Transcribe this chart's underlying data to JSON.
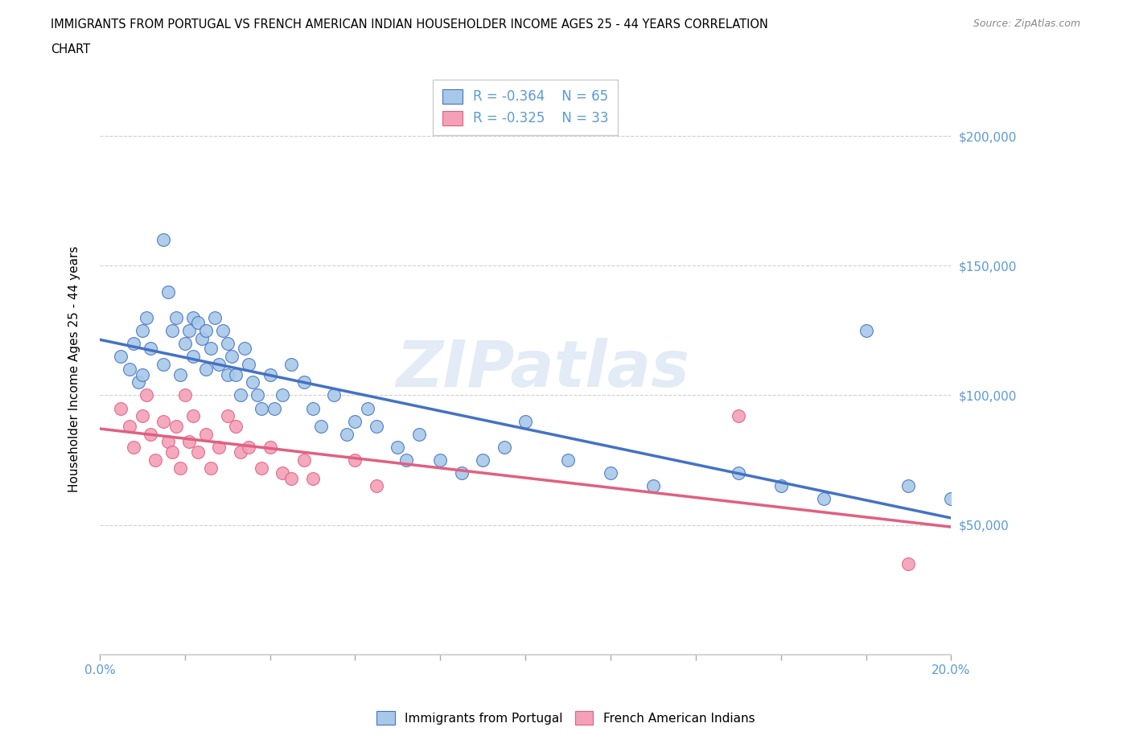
{
  "title_line1": "IMMIGRANTS FROM PORTUGAL VS FRENCH AMERICAN INDIAN HOUSEHOLDER INCOME AGES 25 - 44 YEARS CORRELATION",
  "title_line2": "CHART",
  "source_text": "Source: ZipAtlas.com",
  "ylabel": "Householder Income Ages 25 - 44 years",
  "xlim": [
    0.0,
    0.2
  ],
  "ylim": [
    0,
    220000
  ],
  "yticks": [
    0,
    50000,
    100000,
    150000,
    200000
  ],
  "ytick_labels": [
    "",
    "$50,000",
    "$100,000",
    "$150,000",
    "$200,000"
  ],
  "xticks": [
    0.0,
    0.02,
    0.04,
    0.06,
    0.08,
    0.1,
    0.12,
    0.14,
    0.16,
    0.18,
    0.2
  ],
  "xtick_labels": [
    "0.0%",
    "",
    "",
    "",
    "",
    "",
    "",
    "",
    "",
    "",
    "20.0%"
  ],
  "legend_r1": "R = -0.364",
  "legend_n1": "N = 65",
  "legend_r2": "R = -0.325",
  "legend_n2": "N = 33",
  "blue_color": "#a8c8e8",
  "blue_line_color": "#4472c4",
  "pink_color": "#f4a0b8",
  "pink_line_color": "#e06080",
  "tick_label_color": "#5b9bd5",
  "watermark_color": "#d0dff0",
  "grid_color": "#d0d0d0",
  "portugal_x": [
    0.005,
    0.007,
    0.008,
    0.009,
    0.01,
    0.01,
    0.011,
    0.012,
    0.015,
    0.015,
    0.016,
    0.017,
    0.018,
    0.019,
    0.02,
    0.021,
    0.022,
    0.022,
    0.023,
    0.024,
    0.025,
    0.025,
    0.026,
    0.027,
    0.028,
    0.029,
    0.03,
    0.03,
    0.031,
    0.032,
    0.033,
    0.034,
    0.035,
    0.036,
    0.037,
    0.038,
    0.04,
    0.041,
    0.043,
    0.045,
    0.048,
    0.05,
    0.052,
    0.055,
    0.058,
    0.06,
    0.063,
    0.065,
    0.07,
    0.072,
    0.075,
    0.08,
    0.085,
    0.09,
    0.095,
    0.1,
    0.11,
    0.12,
    0.13,
    0.15,
    0.16,
    0.17,
    0.18,
    0.19,
    0.2
  ],
  "portugal_y": [
    115000,
    110000,
    120000,
    105000,
    125000,
    108000,
    130000,
    118000,
    160000,
    112000,
    140000,
    125000,
    130000,
    108000,
    120000,
    125000,
    130000,
    115000,
    128000,
    122000,
    125000,
    110000,
    118000,
    130000,
    112000,
    125000,
    120000,
    108000,
    115000,
    108000,
    100000,
    118000,
    112000,
    105000,
    100000,
    95000,
    108000,
    95000,
    100000,
    112000,
    105000,
    95000,
    88000,
    100000,
    85000,
    90000,
    95000,
    88000,
    80000,
    75000,
    85000,
    75000,
    70000,
    75000,
    80000,
    90000,
    75000,
    70000,
    65000,
    70000,
    65000,
    60000,
    125000,
    65000,
    60000
  ],
  "french_x": [
    0.005,
    0.007,
    0.008,
    0.01,
    0.011,
    0.012,
    0.013,
    0.015,
    0.016,
    0.017,
    0.018,
    0.019,
    0.02,
    0.021,
    0.022,
    0.023,
    0.025,
    0.026,
    0.028,
    0.03,
    0.032,
    0.033,
    0.035,
    0.038,
    0.04,
    0.043,
    0.045,
    0.048,
    0.05,
    0.06,
    0.065,
    0.15,
    0.19
  ],
  "french_y": [
    95000,
    88000,
    80000,
    92000,
    100000,
    85000,
    75000,
    90000,
    82000,
    78000,
    88000,
    72000,
    100000,
    82000,
    92000,
    78000,
    85000,
    72000,
    80000,
    92000,
    88000,
    78000,
    80000,
    72000,
    80000,
    70000,
    68000,
    75000,
    68000,
    75000,
    65000,
    92000,
    35000
  ]
}
